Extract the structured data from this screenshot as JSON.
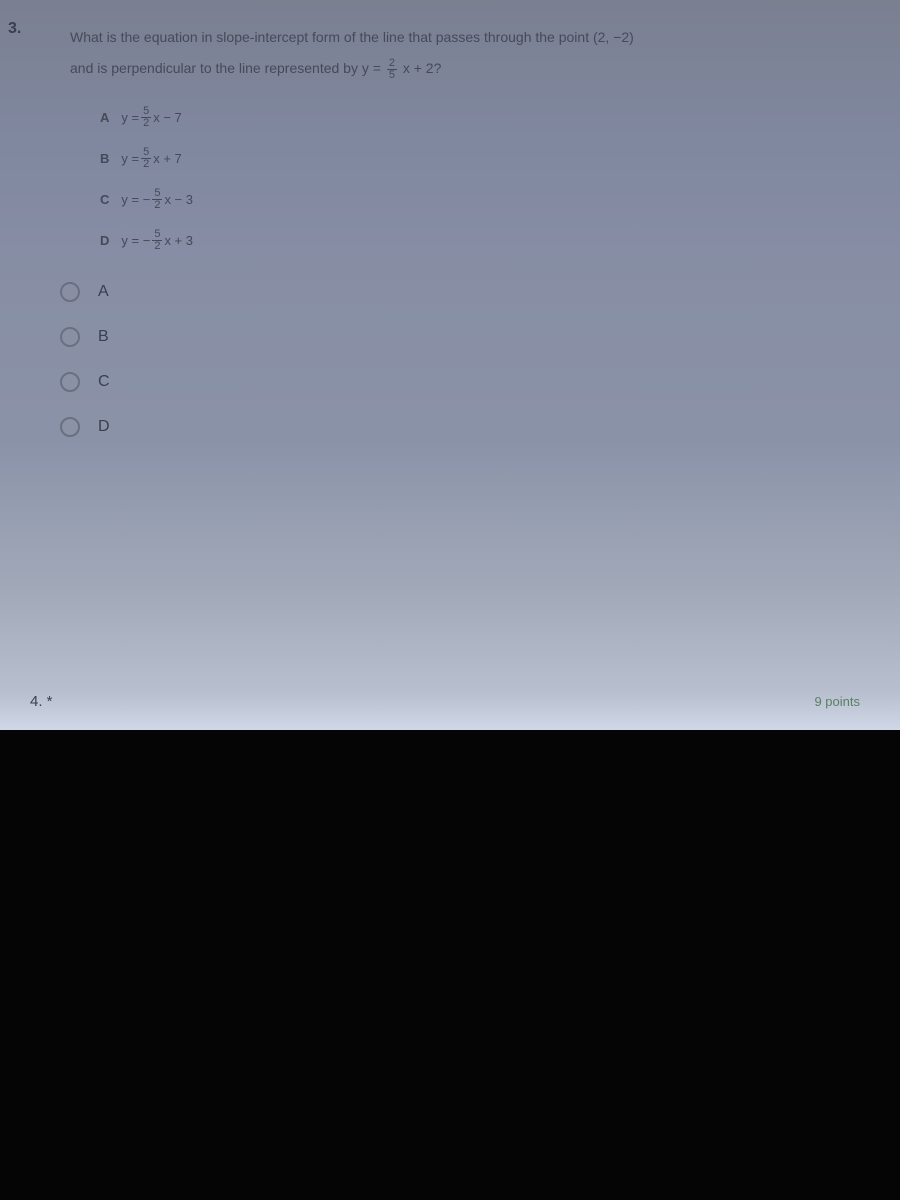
{
  "question": {
    "number": "3.",
    "text_line1": "What is the equation in slope-intercept form of the line that passes through the point (2, −2)",
    "text_line2_prefix": "and is perpendicular to the line represented by y = ",
    "text_line2_suffix": "x + 2?",
    "fraction_main": {
      "num": "2",
      "den": "5"
    }
  },
  "options": [
    {
      "label": "A",
      "prefix": "y = ",
      "frac_num": "5",
      "frac_den": "2",
      "suffix": "x − 7",
      "neg": false
    },
    {
      "label": "B",
      "prefix": "y = ",
      "frac_num": "5",
      "frac_den": "2",
      "suffix": "x + 7",
      "neg": false
    },
    {
      "label": "C",
      "prefix": "y = −",
      "frac_num": "5",
      "frac_den": "2",
      "suffix": "x − 3",
      "neg": true
    },
    {
      "label": "D",
      "prefix": "y = −",
      "frac_num": "5",
      "frac_den": "2",
      "suffix": "x + 3",
      "neg": true
    }
  ],
  "radio_choices": [
    "A",
    "B",
    "C",
    "D"
  ],
  "next_question": {
    "number": "4. *",
    "points": "9 points"
  },
  "colors": {
    "background_gradient_start": "#7a8090",
    "background_gradient_end": "#d0d8e8",
    "text_color": "#3a3f50",
    "radio_border": "#6a7080",
    "points_color": "#5a8060",
    "black_bottom": "#050505"
  }
}
